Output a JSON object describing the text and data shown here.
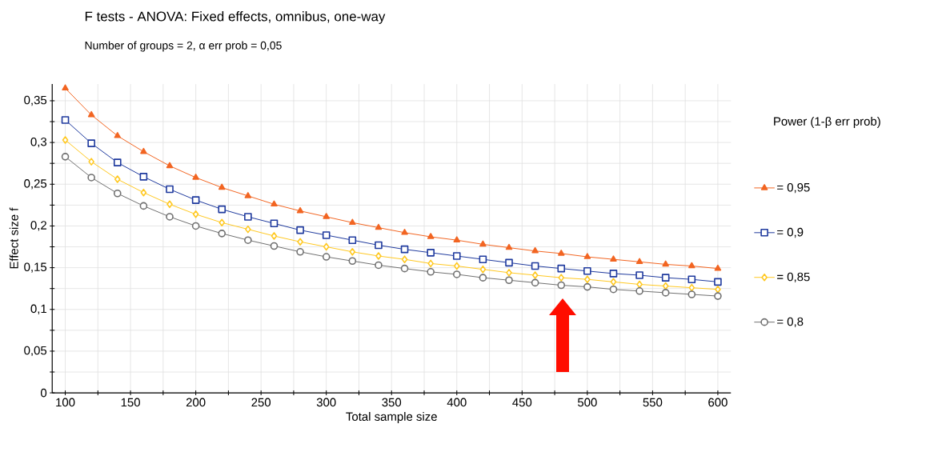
{
  "chart_data": {
    "type": "line",
    "title": "F tests - ANOVA: Fixed effects, omnibus, one-way",
    "subtitle": "Number of groups = 2, α err prob = 0,05",
    "xlabel": "Total sample size",
    "ylabel": "Effect size f",
    "legend_title": "Power (1-β err prob)",
    "legend": "right",
    "grid": true,
    "x": [
      100,
      120,
      140,
      160,
      180,
      200,
      220,
      240,
      260,
      280,
      300,
      320,
      340,
      360,
      380,
      400,
      420,
      440,
      460,
      480,
      500,
      520,
      540,
      560,
      580,
      600
    ],
    "xlim": [
      90,
      610
    ],
    "ylim": [
      0,
      0.37
    ],
    "xticks": [
      100,
      {
        "value": 125,
        "label": null
      },
      150,
      {
        "value": 175,
        "label": null
      },
      200,
      {
        "value": 225,
        "label": null
      },
      250,
      {
        "value": 275,
        "label": null
      },
      300,
      {
        "value": 325,
        "label": null
      },
      350,
      {
        "value": 375,
        "label": null
      },
      400,
      {
        "value": 425,
        "label": null
      },
      450,
      {
        "value": 475,
        "label": null
      },
      500,
      {
        "value": 525,
        "label": null
      },
      550,
      {
        "value": 575,
        "label": null
      },
      600
    ],
    "yticks": [
      0,
      {
        "value": 0.025,
        "label": null
      },
      {
        "value": 0.05,
        "label": "0,05"
      },
      {
        "value": 0.075,
        "label": null
      },
      {
        "value": 0.1,
        "label": "0,1"
      },
      {
        "value": 0.125,
        "label": null
      },
      {
        "value": 0.15,
        "label": "0,15"
      },
      {
        "value": 0.175,
        "label": null
      },
      {
        "value": 0.2,
        "label": "0,2"
      },
      {
        "value": 0.225,
        "label": null
      },
      {
        "value": 0.25,
        "label": "0,25"
      },
      {
        "value": 0.275,
        "label": null
      },
      {
        "value": 0.3,
        "label": "0,3"
      },
      {
        "value": 0.325,
        "label": null
      },
      {
        "value": 0.35,
        "label": "0,35"
      }
    ],
    "series": [
      {
        "name": "= 0,95",
        "color": "#f26522",
        "marker": "triangle",
        "values": [
          0.365,
          0.333,
          0.308,
          0.289,
          0.272,
          0.258,
          0.246,
          0.236,
          0.226,
          0.218,
          0.211,
          0.204,
          0.198,
          0.192,
          0.187,
          0.183,
          0.178,
          0.174,
          0.17,
          0.167,
          0.163,
          0.16,
          0.157,
          0.154,
          0.152,
          0.149
        ]
      },
      {
        "name": "= 0,9",
        "color": "#1f3a9e",
        "marker": "square",
        "values": [
          0.327,
          0.299,
          0.276,
          0.259,
          0.244,
          0.231,
          0.22,
          0.211,
          0.203,
          0.195,
          0.189,
          0.183,
          0.177,
          0.172,
          0.168,
          0.164,
          0.16,
          0.156,
          0.152,
          0.149,
          0.146,
          0.143,
          0.141,
          0.138,
          0.136,
          0.133
        ]
      },
      {
        "name": "= 0,85",
        "color": "#ffc820",
        "marker": "diamond",
        "values": [
          0.303,
          0.277,
          0.256,
          0.24,
          0.226,
          0.214,
          0.204,
          0.196,
          0.188,
          0.181,
          0.175,
          0.169,
          0.164,
          0.16,
          0.155,
          0.152,
          0.148,
          0.144,
          0.141,
          0.138,
          0.136,
          0.133,
          0.13,
          0.128,
          0.126,
          0.124
        ]
      },
      {
        "name": "= 0,8",
        "color": "#707070",
        "marker": "circle",
        "values": [
          0.283,
          0.258,
          0.239,
          0.224,
          0.211,
          0.2,
          0.191,
          0.183,
          0.176,
          0.169,
          0.163,
          0.158,
          0.153,
          0.149,
          0.145,
          0.142,
          0.138,
          0.135,
          0.132,
          0.129,
          0.127,
          0.124,
          0.122,
          0.12,
          0.118,
          0.116
        ]
      }
    ]
  }
}
